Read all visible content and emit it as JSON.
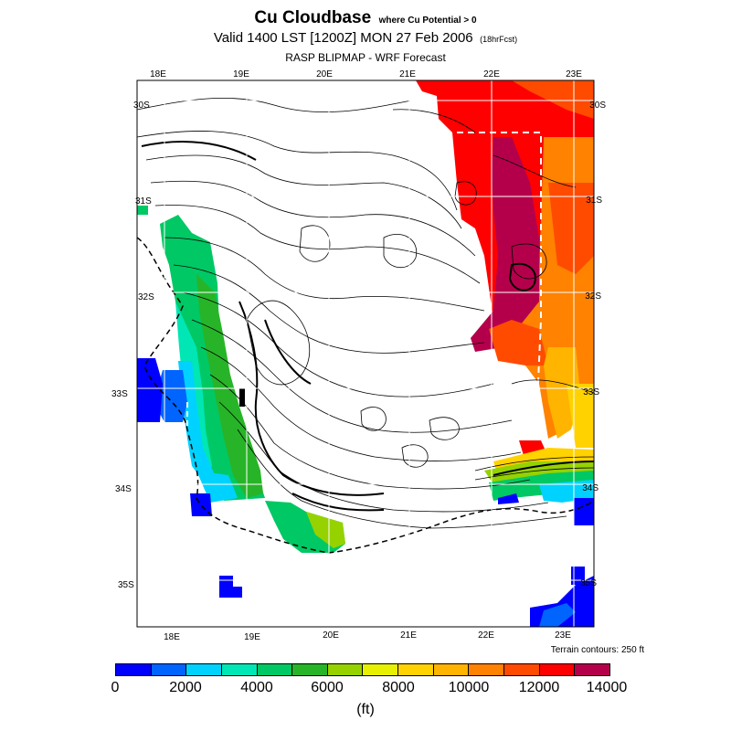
{
  "header": {
    "title": "Cu Cloudbase",
    "title_note": "where Cu Potential > 0",
    "valid": "Valid 1400 LST [1200Z] MON 27 Feb 2006",
    "forecast_hours": "(18hrFcst)",
    "model": "RASP BLIPMAP - WRF Forecast"
  },
  "map": {
    "lon_labels_top": [
      "18E",
      "19E",
      "20E",
      "21E",
      "22E",
      "23E"
    ],
    "lon_labels_bottom": [
      "18E",
      "19E",
      "20E",
      "21E",
      "22E",
      "23E"
    ],
    "lat_labels_left": [
      "30S",
      "31S",
      "32S",
      "33S",
      "34S",
      "35S"
    ],
    "lat_labels_right": [
      "30S",
      "31S",
      "32S",
      "33S",
      "34S",
      "35S"
    ],
    "terrain_note": "Terrain contours: 250 ft"
  },
  "colorbar": {
    "colors": [
      "#0000ff",
      "#0064ff",
      "#00d2ff",
      "#00e6b4",
      "#00c864",
      "#28b428",
      "#96d200",
      "#e6f000",
      "#ffd200",
      "#ffb400",
      "#ff8200",
      "#ff4b00",
      "#ff0000",
      "#b4004b"
    ],
    "tick_labels": [
      "0",
      "2000",
      "4000",
      "6000",
      "8000",
      "10000",
      "12000",
      "14000"
    ],
    "unit": "(ft)"
  }
}
